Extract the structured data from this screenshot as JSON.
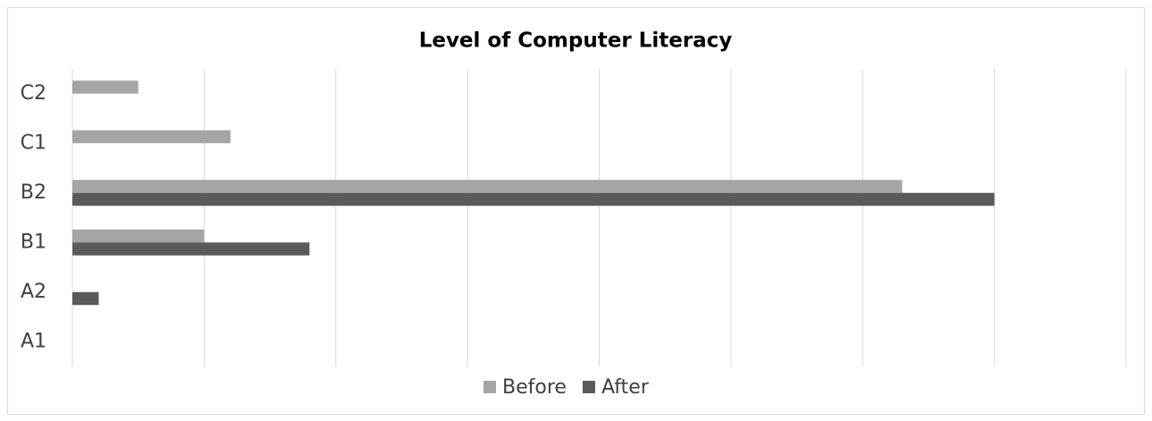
{
  "chart_data": {
    "type": "bar",
    "orientation": "horizontal",
    "title": "Level of Computer Literacy",
    "categories": [
      "A1",
      "A2",
      "B1",
      "B2",
      "C1",
      "C2"
    ],
    "series": [
      {
        "name": "Before",
        "color": "#a5a5a5",
        "values": [
          0,
          0,
          5,
          31.5,
          6,
          2.5
        ]
      },
      {
        "name": "After",
        "color": "#5a5a5a",
        "values": [
          0,
          1,
          9,
          35,
          0,
          0
        ]
      }
    ],
    "xlim": [
      0,
      40
    ],
    "xticks": [
      0,
      5,
      10,
      15,
      20,
      25,
      30,
      35,
      40
    ],
    "grid": true,
    "legend": "bottom"
  }
}
